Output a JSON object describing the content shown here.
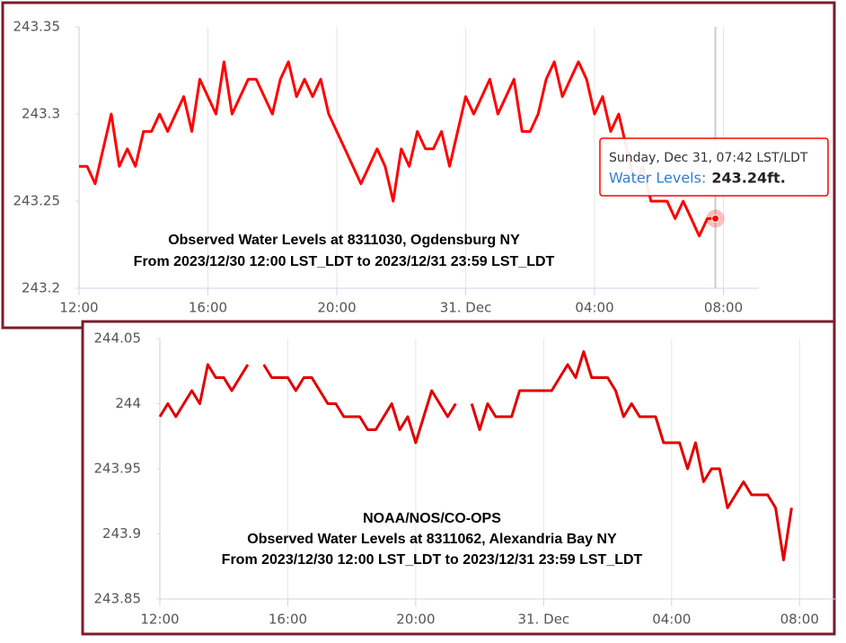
{
  "chart_data": [
    {
      "type": "line",
      "annotations": [
        "Observed Water Levels at 8311030, Ogdensburg NY",
        "From 2023/12/30 12:00 LST_LDT to 2023/12/31 23:59 LST_LDT"
      ],
      "x": [
        0,
        0.25,
        0.5,
        0.75,
        1,
        1.25,
        1.5,
        1.75,
        2,
        2.25,
        2.5,
        2.75,
        3,
        3.25,
        3.5,
        3.75,
        4,
        4.25,
        4.5,
        4.75,
        5,
        5.25,
        5.5,
        5.75,
        6,
        6.25,
        6.5,
        6.75,
        7,
        7.25,
        7.5,
        7.75,
        8,
        8.25,
        8.5,
        8.75,
        9,
        9.25,
        9.5,
        9.75,
        10,
        10.25,
        10.5,
        10.75,
        11,
        11.25,
        11.5,
        11.75,
        12,
        12.25,
        12.5,
        12.75,
        13,
        13.25,
        13.5,
        13.75,
        14,
        14.25,
        14.5,
        14.75,
        15,
        15.25,
        15.5,
        15.75,
        16,
        16.25,
        16.5,
        16.75,
        17,
        17.25,
        17.5,
        17.75,
        18,
        18.25,
        18.5,
        18.75,
        19,
        19.25,
        19.5,
        19.75
      ],
      "series": [
        {
          "name": "Water Levels",
          "color": "#ff0000",
          "values": [
            243.27,
            243.27,
            243.26,
            243.28,
            243.3,
            243.27,
            243.28,
            243.27,
            243.29,
            243.29,
            243.3,
            243.29,
            243.3,
            243.31,
            243.29,
            243.32,
            243.31,
            243.3,
            243.33,
            243.3,
            243.31,
            243.32,
            243.32,
            243.31,
            243.3,
            243.32,
            243.33,
            243.31,
            243.32,
            243.31,
            243.32,
            243.3,
            243.29,
            243.28,
            243.27,
            243.26,
            243.27,
            243.28,
            243.27,
            243.25,
            243.28,
            243.27,
            243.29,
            243.28,
            243.28,
            243.29,
            243.27,
            243.29,
            243.31,
            243.3,
            243.31,
            243.32,
            243.3,
            243.31,
            243.32,
            243.29,
            243.29,
            243.3,
            243.32,
            243.33,
            243.31,
            243.32,
            243.33,
            243.32,
            243.3,
            243.31,
            243.29,
            243.3,
            243.28,
            243.26,
            243.27,
            243.25,
            243.25,
            243.25,
            243.24,
            243.25,
            243.24,
            243.23,
            243.24,
            243.24
          ]
        }
      ],
      "xlim": [
        0,
        21.1
      ],
      "xticks": [
        {
          "value": 0,
          "label": "12:00"
        },
        {
          "value": 4,
          "label": "16:00"
        },
        {
          "value": 8,
          "label": "20:00"
        },
        {
          "value": 12,
          "label": "31. Dec"
        },
        {
          "value": 16,
          "label": "04:00"
        },
        {
          "value": 20,
          "label": "08:00"
        }
      ],
      "ylim": [
        243.2,
        243.35
      ],
      "yticks": [
        243.2,
        243.25,
        243.3,
        243.35
      ],
      "grid": true,
      "tooltip": {
        "title": "Sunday, Dec 31, 07:42 LST/LDT",
        "label": "Water Levels:",
        "value": 243.24,
        "value_label": "243.24ft."
      }
    },
    {
      "type": "line",
      "annotations": [
        "NOAA/NOS/CO-OPS",
        "Observed Water Levels at 8311062, Alexandria Bay NY",
        "From 2023/12/30 12:00 LST_LDT to 2023/12/31 23:59 LST_LDT"
      ],
      "x": [
        0,
        0.25,
        0.5,
        0.75,
        1,
        1.25,
        1.5,
        1.75,
        2,
        2.25,
        2.5,
        2.75,
        3,
        3.25,
        3.5,
        3.75,
        4,
        4.25,
        4.5,
        4.75,
        5,
        5.25,
        5.5,
        5.75,
        6,
        6.25,
        6.5,
        6.75,
        7,
        7.25,
        7.5,
        7.75,
        8,
        8.25,
        8.5,
        8.75,
        9,
        9.25,
        9.5,
        9.75,
        10,
        10.25,
        10.5,
        10.75,
        11,
        11.25,
        11.5,
        11.75,
        12,
        12.25,
        12.5,
        12.75,
        13,
        13.25,
        13.5,
        13.75,
        14,
        14.25,
        14.5,
        14.75,
        15,
        15.25,
        15.5,
        15.75,
        16,
        16.25,
        16.5,
        16.75,
        17,
        17.25,
        17.5,
        17.75,
        18,
        18.25,
        18.5,
        18.75,
        19,
        19.25,
        19.5,
        19.75
      ],
      "series": [
        {
          "name": "Water Levels",
          "color": "#e00000",
          "values": [
            243.99,
            244.0,
            243.99,
            244.0,
            244.01,
            244.0,
            244.03,
            244.02,
            244.02,
            244.01,
            244.02,
            244.03,
            null,
            244.03,
            244.02,
            244.02,
            244.02,
            244.01,
            244.02,
            244.02,
            244.01,
            244.0,
            244.0,
            243.99,
            243.99,
            243.99,
            243.98,
            243.98,
            243.99,
            244.0,
            243.98,
            243.99,
            243.97,
            243.99,
            244.01,
            244.0,
            243.99,
            244.0,
            null,
            244.0,
            243.98,
            244.0,
            243.99,
            243.99,
            243.99,
            244.01,
            244.01,
            244.01,
            244.01,
            244.01,
            244.02,
            244.03,
            244.02,
            244.04,
            244.02,
            244.02,
            244.02,
            244.01,
            243.99,
            244.0,
            243.99,
            243.99,
            243.99,
            243.97,
            243.97,
            243.97,
            243.95,
            243.97,
            243.94,
            243.95,
            243.95,
            243.92,
            243.93,
            243.94,
            243.93,
            243.93,
            243.93,
            243.92,
            243.88,
            243.92
          ]
        }
      ],
      "xlim": [
        0,
        21.2
      ],
      "xticks": [
        {
          "value": 0,
          "label": "12:00"
        },
        {
          "value": 4,
          "label": "16:00"
        },
        {
          "value": 8,
          "label": "20:00"
        },
        {
          "value": 12,
          "label": "31. Dec"
        },
        {
          "value": 16,
          "label": "04:00"
        },
        {
          "value": 20,
          "label": "08:00"
        }
      ],
      "ylim": [
        243.85,
        244.05
      ],
      "yticks": [
        243.85,
        243.9,
        243.95,
        244,
        244.05
      ],
      "grid": true
    }
  ]
}
